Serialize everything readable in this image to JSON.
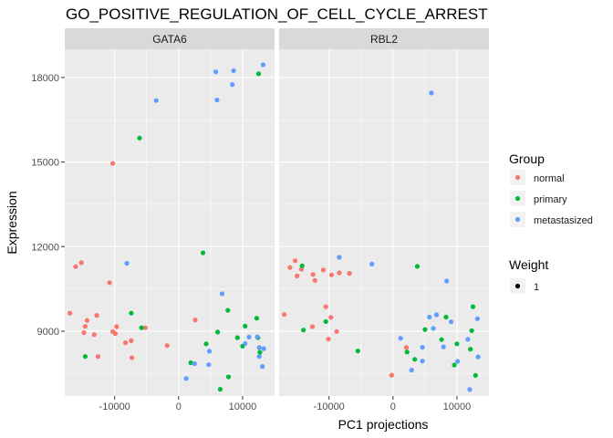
{
  "chart_data": {
    "type": "scatter",
    "title": "GO_POSITIVE_REGULATION_OF_CELL_CYCLE_ARREST",
    "xlabel": "PC1 projections",
    "ylabel": "Expression",
    "xlim": [
      -17800,
      15000
    ],
    "ylim": [
      6700,
      19000
    ],
    "xticks": [
      {
        "value": -10000,
        "label": "-10000"
      },
      {
        "value": 0,
        "label": "0"
      },
      {
        "value": 10000,
        "label": "10000"
      }
    ],
    "yticks": [
      {
        "value": 9000,
        "label": "9000"
      },
      {
        "value": 12000,
        "label": "12000"
      },
      {
        "value": 15000,
        "label": "15000"
      },
      {
        "value": 18000,
        "label": "18000"
      }
    ],
    "grid": true,
    "legend": {
      "placement": "right",
      "group_title": "Group",
      "weight_title": "Weight",
      "weight_label": "1"
    },
    "groups": [
      {
        "name": "normal",
        "color": "#F8766D"
      },
      {
        "name": "primary",
        "color": "#00BA38"
      },
      {
        "name": "metastasized",
        "color": "#619CFF"
      }
    ],
    "panels": [
      {
        "name": "GATA6",
        "points": [
          {
            "x": -10300,
            "y": 14950,
            "group": "normal"
          },
          {
            "x": -15200,
            "y": 11430,
            "group": "normal"
          },
          {
            "x": -16100,
            "y": 11290,
            "group": "normal"
          },
          {
            "x": -10800,
            "y": 10720,
            "group": "normal"
          },
          {
            "x": -17000,
            "y": 9640,
            "group": "normal"
          },
          {
            "x": -12800,
            "y": 9560,
            "group": "normal"
          },
          {
            "x": -14300,
            "y": 9380,
            "group": "normal"
          },
          {
            "x": -14600,
            "y": 9170,
            "group": "normal"
          },
          {
            "x": -9700,
            "y": 9160,
            "group": "normal"
          },
          {
            "x": -5200,
            "y": 9120,
            "group": "normal"
          },
          {
            "x": -10300,
            "y": 8990,
            "group": "normal"
          },
          {
            "x": -14800,
            "y": 8950,
            "group": "normal"
          },
          {
            "x": -9900,
            "y": 8910,
            "group": "normal"
          },
          {
            "x": -13200,
            "y": 8880,
            "group": "normal"
          },
          {
            "x": -8300,
            "y": 8590,
            "group": "normal"
          },
          {
            "x": -7400,
            "y": 8660,
            "group": "normal"
          },
          {
            "x": -1800,
            "y": 8490,
            "group": "normal"
          },
          {
            "x": 2600,
            "y": 9400,
            "group": "normal"
          },
          {
            "x": -12600,
            "y": 8100,
            "group": "normal"
          },
          {
            "x": -7300,
            "y": 8060,
            "group": "normal"
          },
          {
            "x": -6100,
            "y": 15850,
            "group": "primary"
          },
          {
            "x": 12500,
            "y": 18130,
            "group": "primary"
          },
          {
            "x": 3800,
            "y": 11780,
            "group": "primary"
          },
          {
            "x": -7400,
            "y": 9640,
            "group": "primary"
          },
          {
            "x": -5800,
            "y": 9120,
            "group": "primary"
          },
          {
            "x": 7700,
            "y": 9740,
            "group": "primary"
          },
          {
            "x": 12200,
            "y": 9460,
            "group": "primary"
          },
          {
            "x": 10400,
            "y": 9180,
            "group": "primary"
          },
          {
            "x": 6100,
            "y": 8970,
            "group": "primary"
          },
          {
            "x": 9200,
            "y": 8770,
            "group": "primary"
          },
          {
            "x": 12400,
            "y": 8770,
            "group": "primary"
          },
          {
            "x": 4300,
            "y": 8550,
            "group": "primary"
          },
          {
            "x": 10000,
            "y": 8470,
            "group": "primary"
          },
          {
            "x": -14600,
            "y": 8100,
            "group": "primary"
          },
          {
            "x": 1900,
            "y": 7880,
            "group": "primary"
          },
          {
            "x": 7800,
            "y": 7380,
            "group": "primary"
          },
          {
            "x": 6500,
            "y": 6940,
            "group": "primary"
          },
          {
            "x": 12700,
            "y": 8250,
            "group": "primary"
          },
          {
            "x": 5800,
            "y": 18200,
            "group": "metastasized"
          },
          {
            "x": 8600,
            "y": 18240,
            "group": "metastasized"
          },
          {
            "x": 13200,
            "y": 18450,
            "group": "metastasized"
          },
          {
            "x": 8400,
            "y": 17750,
            "group": "metastasized"
          },
          {
            "x": -3500,
            "y": 17180,
            "group": "metastasized"
          },
          {
            "x": 6000,
            "y": 17200,
            "group": "metastasized"
          },
          {
            "x": -8100,
            "y": 11410,
            "group": "metastasized"
          },
          {
            "x": 6800,
            "y": 10330,
            "group": "metastasized"
          },
          {
            "x": 11000,
            "y": 8790,
            "group": "metastasized"
          },
          {
            "x": 12300,
            "y": 8800,
            "group": "metastasized"
          },
          {
            "x": 10400,
            "y": 8560,
            "group": "metastasized"
          },
          {
            "x": 12600,
            "y": 8420,
            "group": "metastasized"
          },
          {
            "x": 13300,
            "y": 8380,
            "group": "metastasized"
          },
          {
            "x": 4800,
            "y": 8290,
            "group": "metastasized"
          },
          {
            "x": 12600,
            "y": 8100,
            "group": "metastasized"
          },
          {
            "x": 2500,
            "y": 7850,
            "group": "metastasized"
          },
          {
            "x": 4700,
            "y": 7810,
            "group": "metastasized"
          },
          {
            "x": 13100,
            "y": 7750,
            "group": "metastasized"
          },
          {
            "x": 1200,
            "y": 7320,
            "group": "metastasized"
          }
        ]
      },
      {
        "name": "RBL2",
        "points": [
          {
            "x": -15300,
            "y": 11500,
            "group": "normal"
          },
          {
            "x": -16100,
            "y": 11260,
            "group": "normal"
          },
          {
            "x": -14300,
            "y": 11200,
            "group": "normal"
          },
          {
            "x": -12500,
            "y": 11010,
            "group": "normal"
          },
          {
            "x": -15000,
            "y": 10960,
            "group": "normal"
          },
          {
            "x": -10900,
            "y": 11170,
            "group": "normal"
          },
          {
            "x": -12200,
            "y": 10800,
            "group": "normal"
          },
          {
            "x": -9600,
            "y": 11000,
            "group": "normal"
          },
          {
            "x": -8400,
            "y": 11070,
            "group": "normal"
          },
          {
            "x": -6800,
            "y": 11050,
            "group": "normal"
          },
          {
            "x": -17000,
            "y": 9590,
            "group": "normal"
          },
          {
            "x": -10500,
            "y": 9870,
            "group": "normal"
          },
          {
            "x": -9700,
            "y": 9490,
            "group": "normal"
          },
          {
            "x": -12600,
            "y": 9160,
            "group": "normal"
          },
          {
            "x": -8800,
            "y": 8990,
            "group": "normal"
          },
          {
            "x": -10100,
            "y": 8720,
            "group": "normal"
          },
          {
            "x": -200,
            "y": 7440,
            "group": "normal"
          },
          {
            "x": 2100,
            "y": 8420,
            "group": "normal"
          },
          {
            "x": -14200,
            "y": 11320,
            "group": "primary"
          },
          {
            "x": 3800,
            "y": 11300,
            "group": "primary"
          },
          {
            "x": -10500,
            "y": 9340,
            "group": "primary"
          },
          {
            "x": -14000,
            "y": 9040,
            "group": "primary"
          },
          {
            "x": -5500,
            "y": 8300,
            "group": "primary"
          },
          {
            "x": 5000,
            "y": 9060,
            "group": "primary"
          },
          {
            "x": 7600,
            "y": 8700,
            "group": "primary"
          },
          {
            "x": 12500,
            "y": 9870,
            "group": "primary"
          },
          {
            "x": 12300,
            "y": 9020,
            "group": "primary"
          },
          {
            "x": 2200,
            "y": 8260,
            "group": "primary"
          },
          {
            "x": 3400,
            "y": 8000,
            "group": "primary"
          },
          {
            "x": 10000,
            "y": 8550,
            "group": "primary"
          },
          {
            "x": 12100,
            "y": 8360,
            "group": "primary"
          },
          {
            "x": 12900,
            "y": 7430,
            "group": "primary"
          },
          {
            "x": 9600,
            "y": 7800,
            "group": "primary"
          },
          {
            "x": 8300,
            "y": 9500,
            "group": "primary"
          },
          {
            "x": 6000,
            "y": 17450,
            "group": "metastasized"
          },
          {
            "x": -8400,
            "y": 11620,
            "group": "metastasized"
          },
          {
            "x": -3300,
            "y": 11380,
            "group": "metastasized"
          },
          {
            "x": 8400,
            "y": 10780,
            "group": "metastasized"
          },
          {
            "x": 6800,
            "y": 9580,
            "group": "metastasized"
          },
          {
            "x": 5700,
            "y": 9500,
            "group": "metastasized"
          },
          {
            "x": 13200,
            "y": 9440,
            "group": "metastasized"
          },
          {
            "x": 9100,
            "y": 9330,
            "group": "metastasized"
          },
          {
            "x": 6300,
            "y": 9100,
            "group": "metastasized"
          },
          {
            "x": 1200,
            "y": 8750,
            "group": "metastasized"
          },
          {
            "x": 11700,
            "y": 8710,
            "group": "metastasized"
          },
          {
            "x": 4600,
            "y": 8430,
            "group": "metastasized"
          },
          {
            "x": 7900,
            "y": 8440,
            "group": "metastasized"
          },
          {
            "x": 13300,
            "y": 8090,
            "group": "metastasized"
          },
          {
            "x": 4600,
            "y": 7940,
            "group": "metastasized"
          },
          {
            "x": 10100,
            "y": 7930,
            "group": "metastasized"
          },
          {
            "x": 2900,
            "y": 7620,
            "group": "metastasized"
          },
          {
            "x": 12000,
            "y": 6930,
            "group": "metastasized"
          }
        ]
      }
    ]
  }
}
